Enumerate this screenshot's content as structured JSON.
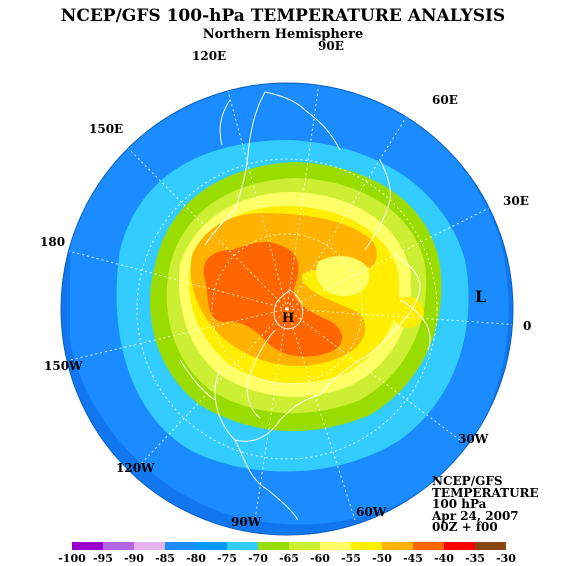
{
  "header": {
    "title": "NCEP/GFS 100-hPa TEMPERATURE ANALYSIS",
    "subtitle": "Northern Hemisphere"
  },
  "longitude_labels": [
    "90E",
    "60E",
    "30E",
    "0",
    "30W",
    "60W",
    "90W",
    "120W",
    "150W",
    "180",
    "150E",
    "120E"
  ],
  "pressure_markers": {
    "high": "H",
    "low": "L"
  },
  "info_box": {
    "line1": "NCEP/GFS",
    "line2": "TEMPERATURE",
    "line3": "100 hPa",
    "line4": "Apr 24, 2007",
    "line5": "00Z + f00"
  },
  "legend": {
    "ticks": [
      "-100",
      "-95",
      "-90",
      "-85",
      "-80",
      "-75",
      "-70",
      "-65",
      "-60",
      "-55",
      "-50",
      "-45",
      "-40",
      "-35",
      "-30"
    ],
    "colors": [
      "#9900cc",
      "#b266e5",
      "#e6b3f0",
      "#1a8cff",
      "#0099ff",
      "#33ccff",
      "#99dd00",
      "#ccee33",
      "#ffff66",
      "#ffee00",
      "#ffb300",
      "#ff6600",
      "#ff0000",
      "#8b4513"
    ]
  },
  "colors": {
    "cold_outer": "#1177ee",
    "ocean_blue": "#1a8cff",
    "light_blue": "#33ccff",
    "green": "#99dd00",
    "yellow_green": "#ccee33",
    "yellow": "#ffff66",
    "yellow_orange": "#ffee00",
    "orange": "#ffb300",
    "red_orange": "#ff6600"
  }
}
